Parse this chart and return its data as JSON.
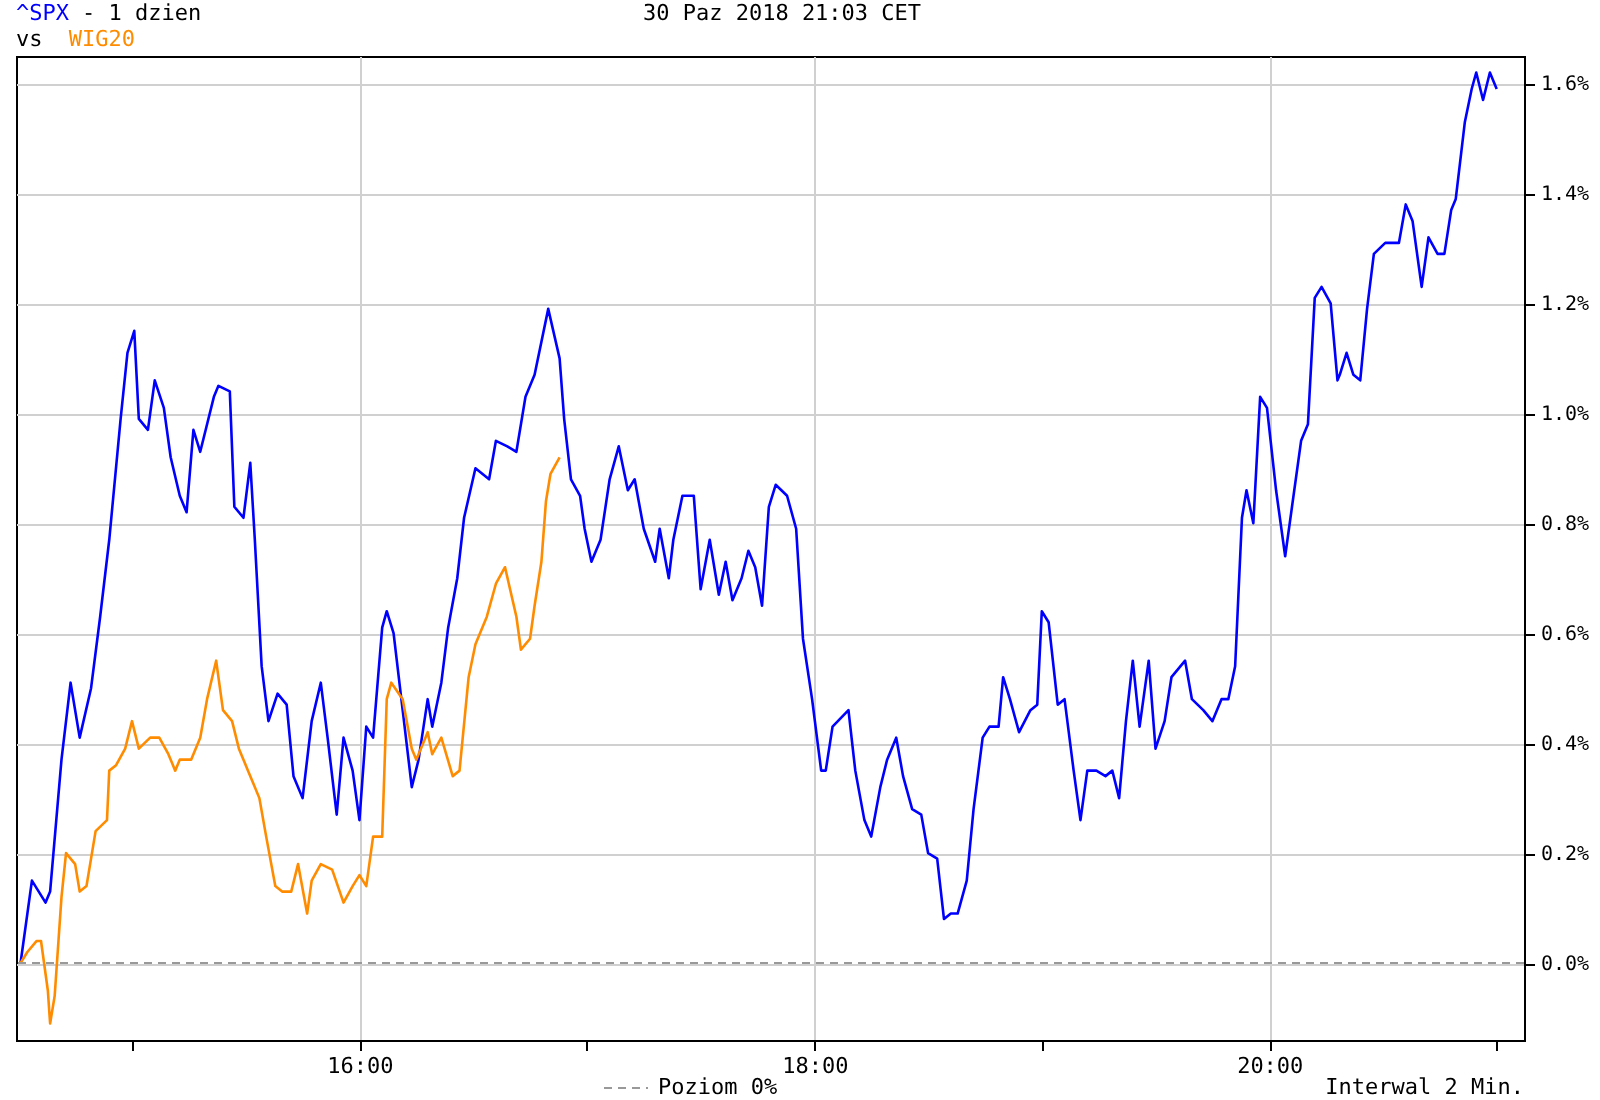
{
  "chart_data": {
    "type": "line",
    "title": "- 1 dzien",
    "annotations": [
      "vs",
      "30 Paz 2018 21:03 CET",
      "Interwal 2 Min."
    ],
    "xlim": [
      14.49,
      21.12
    ],
    "xticks": [
      {
        "value": 15,
        "label": null
      },
      {
        "value": 16,
        "label": "16:00"
      },
      {
        "value": 17,
        "label": null
      },
      {
        "value": 18,
        "label": "18:00"
      },
      {
        "value": 19,
        "label": null
      },
      {
        "value": 20,
        "label": "20:00"
      },
      {
        "value": 21,
        "label": null
      }
    ],
    "ylim": [
      -0.14,
      1.65
    ],
    "yticks": [
      {
        "value": 0,
        "label": "0.0%"
      },
      {
        "value": 0.2,
        "label": "0.2%"
      },
      {
        "value": 0.4,
        "label": "0.4%"
      },
      {
        "value": 0.6,
        "label": "0.6%"
      },
      {
        "value": 0.8,
        "label": "0.8%"
      },
      {
        "value": 1.0,
        "label": "1.0%"
      },
      {
        "value": 1.2,
        "label": "1.2%"
      },
      {
        "value": 1.4,
        "label": "1.4%"
      },
      {
        "value": 1.6,
        "label": "1.6%"
      }
    ],
    "grid": true,
    "legend": "bottom",
    "marker": "none",
    "line_style": "solid",
    "ref_lines": [
      {
        "axis": "y",
        "value": 0,
        "label": "Poziom 0%",
        "color": "#999999",
        "line_style": "dashed"
      }
    ],
    "series": [
      {
        "name": "^SPX",
        "color": "#0000ff",
        "x": [
          14.51,
          14.56,
          14.62,
          14.64,
          14.69,
          14.73,
          14.77,
          14.82,
          14.86,
          14.9,
          14.95,
          14.98,
          15.01,
          15.03,
          15.07,
          15.1,
          15.14,
          15.17,
          15.21,
          15.24,
          15.27,
          15.3,
          15.36,
          15.38,
          15.43,
          15.45,
          15.49,
          15.52,
          15.54,
          15.57,
          15.6,
          15.64,
          15.68,
          15.71,
          15.75,
          15.79,
          15.83,
          15.86,
          15.9,
          15.93,
          15.97,
          16.0,
          16.03,
          16.06,
          16.1,
          16.12,
          16.15,
          16.19,
          16.23,
          16.26,
          16.3,
          16.32,
          16.36,
          16.39,
          16.43,
          16.46,
          16.51,
          16.57,
          16.6,
          16.65,
          16.69,
          16.73,
          16.77,
          16.83,
          16.88,
          16.9,
          16.93,
          16.97,
          16.99,
          17.02,
          17.06,
          17.1,
          17.14,
          17.18,
          17.21,
          17.25,
          17.3,
          17.32,
          17.36,
          17.38,
          17.42,
          17.47,
          17.5,
          17.54,
          17.58,
          17.61,
          17.64,
          17.68,
          17.71,
          17.74,
          17.77,
          17.8,
          17.83,
          17.88,
          17.92,
          17.95,
          17.99,
          18.03,
          18.05,
          18.08,
          18.15,
          18.18,
          18.22,
          18.25,
          18.29,
          18.32,
          18.36,
          18.39,
          18.43,
          18.47,
          18.5,
          18.54,
          18.57,
          18.6,
          18.63,
          18.67,
          18.7,
          18.74,
          18.77,
          18.81,
          18.83,
          18.86,
          18.9,
          18.95,
          18.98,
          19.0,
          19.03,
          19.07,
          19.1,
          19.14,
          19.17,
          19.2,
          19.24,
          19.28,
          19.31,
          19.34,
          19.37,
          19.4,
          19.43,
          19.47,
          19.5,
          19.54,
          19.57,
          19.63,
          19.66,
          19.71,
          19.75,
          19.79,
          19.82,
          19.85,
          19.88,
          19.9,
          19.93,
          19.96,
          19.99,
          20.03,
          20.07,
          20.1,
          20.14,
          20.17,
          20.2,
          20.23,
          20.27,
          20.3,
          20.31,
          20.34,
          20.37,
          20.4,
          20.43,
          20.46,
          20.51,
          20.57,
          20.6,
          20.63,
          20.67,
          20.7,
          20.74,
          20.77,
          20.8,
          20.82,
          20.86,
          20.89,
          20.91,
          20.94,
          20.97,
          21.0
        ],
        "values": [
          0.0,
          0.15,
          0.11,
          0.13,
          0.37,
          0.51,
          0.41,
          0.5,
          0.63,
          0.77,
          0.99,
          1.11,
          1.15,
          0.99,
          0.97,
          1.06,
          1.01,
          0.92,
          0.85,
          0.82,
          0.97,
          0.93,
          1.03,
          1.05,
          1.04,
          0.83,
          0.81,
          0.91,
          0.77,
          0.54,
          0.44,
          0.49,
          0.47,
          0.34,
          0.3,
          0.44,
          0.51,
          0.41,
          0.27,
          0.41,
          0.35,
          0.26,
          0.43,
          0.41,
          0.61,
          0.64,
          0.6,
          0.46,
          0.32,
          0.37,
          0.48,
          0.43,
          0.51,
          0.61,
          0.7,
          0.81,
          0.9,
          0.88,
          0.95,
          0.94,
          0.93,
          1.03,
          1.07,
          1.19,
          1.1,
          0.99,
          0.88,
          0.85,
          0.79,
          0.73,
          0.77,
          0.88,
          0.94,
          0.86,
          0.88,
          0.79,
          0.73,
          0.79,
          0.7,
          0.77,
          0.85,
          0.85,
          0.68,
          0.77,
          0.67,
          0.73,
          0.66,
          0.7,
          0.75,
          0.72,
          0.65,
          0.83,
          0.87,
          0.85,
          0.79,
          0.59,
          0.48,
          0.35,
          0.35,
          0.43,
          0.46,
          0.35,
          0.26,
          0.23,
          0.32,
          0.37,
          0.41,
          0.34,
          0.28,
          0.27,
          0.2,
          0.19,
          0.08,
          0.09,
          0.09,
          0.15,
          0.28,
          0.41,
          0.43,
          0.43,
          0.52,
          0.48,
          0.42,
          0.46,
          0.47,
          0.64,
          0.62,
          0.47,
          0.48,
          0.35,
          0.26,
          0.35,
          0.35,
          0.34,
          0.35,
          0.3,
          0.44,
          0.55,
          0.43,
          0.55,
          0.39,
          0.44,
          0.52,
          0.55,
          0.48,
          0.46,
          0.44,
          0.48,
          0.48,
          0.54,
          0.81,
          0.86,
          0.8,
          1.03,
          1.01,
          0.86,
          0.74,
          0.83,
          0.95,
          0.98,
          1.21,
          1.23,
          1.2,
          1.06,
          1.07,
          1.11,
          1.07,
          1.06,
          1.19,
          1.29,
          1.31,
          1.31,
          1.38,
          1.35,
          1.23,
          1.32,
          1.29,
          1.29,
          1.37,
          1.39,
          1.53,
          1.59,
          1.62,
          1.57,
          1.62,
          1.59
        ]
      },
      {
        "name": "WIG20",
        "color": "#ff8c00",
        "x": [
          14.51,
          14.54,
          14.58,
          14.6,
          14.63,
          14.64,
          14.66,
          14.69,
          14.71,
          14.75,
          14.77,
          14.8,
          14.84,
          14.89,
          14.9,
          14.93,
          14.97,
          15.0,
          15.03,
          15.08,
          15.12,
          15.16,
          15.19,
          15.21,
          15.26,
          15.3,
          15.33,
          15.37,
          15.4,
          15.44,
          15.47,
          15.51,
          15.56,
          15.59,
          15.63,
          15.66,
          15.7,
          15.73,
          15.77,
          15.79,
          15.83,
          15.88,
          15.93,
          15.97,
          16.0,
          16.03,
          16.06,
          16.1,
          16.12,
          16.14,
          16.19,
          16.23,
          16.25,
          16.3,
          16.32,
          16.36,
          16.41,
          16.44,
          16.48,
          16.51,
          16.56,
          16.6,
          16.64,
          16.69,
          16.71,
          16.75,
          16.77,
          16.8,
          16.82,
          16.84,
          16.88
        ],
        "values": [
          0.0,
          0.02,
          0.04,
          0.04,
          -0.05,
          -0.11,
          -0.06,
          0.12,
          0.2,
          0.18,
          0.13,
          0.14,
          0.24,
          0.26,
          0.35,
          0.36,
          0.39,
          0.44,
          0.39,
          0.41,
          0.41,
          0.38,
          0.35,
          0.37,
          0.37,
          0.41,
          0.48,
          0.55,
          0.46,
          0.44,
          0.39,
          0.35,
          0.3,
          0.23,
          0.14,
          0.13,
          0.13,
          0.18,
          0.09,
          0.15,
          0.18,
          0.17,
          0.11,
          0.14,
          0.16,
          0.14,
          0.23,
          0.23,
          0.48,
          0.51,
          0.48,
          0.39,
          0.37,
          0.42,
          0.38,
          0.41,
          0.34,
          0.35,
          0.52,
          0.58,
          0.63,
          0.69,
          0.72,
          0.63,
          0.57,
          0.59,
          0.65,
          0.73,
          0.84,
          0.89,
          0.92
        ]
      }
    ]
  }
}
